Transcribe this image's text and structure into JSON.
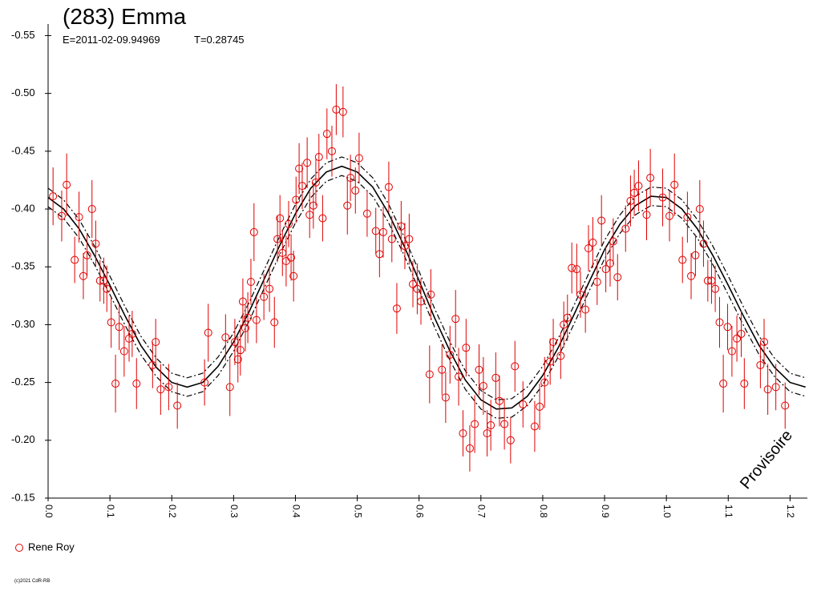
{
  "chart_data": {
    "type": "lightcurve",
    "title": "(283) Emma",
    "epoch": "E=2011-02-09.94969",
    "period": "T=0.28745",
    "annotation": "Provisoire",
    "copyright": "(c)2021 CdR-RB",
    "xlim": [
      0,
      1.228
    ],
    "ylim": [
      -0.56,
      -0.15
    ],
    "y_reversed": true,
    "xticks": [
      {
        "value": 0,
        "label": "0.0"
      },
      0.1,
      0.2,
      0.3,
      0.4,
      0.5,
      0.6,
      0.7,
      0.8,
      0.9,
      {
        "value": 1,
        "label": "1.0"
      },
      1.1,
      1.2
    ],
    "yticks": [
      -0.55,
      {
        "value": -0.5,
        "label": "-0.50"
      },
      -0.45,
      {
        "value": -0.4,
        "label": "-0.40"
      },
      -0.35,
      {
        "value": -0.3,
        "label": "-0.30"
      },
      -0.25,
      {
        "value": -0.2,
        "label": "-0.20"
      },
      -0.15
    ],
    "curves": {
      "x": [
        0,
        0.025,
        0.05,
        0.075,
        0.1,
        0.125,
        0.15,
        0.175,
        0.2,
        0.225,
        0.25,
        0.275,
        0.3,
        0.325,
        0.35,
        0.375,
        0.4,
        0.425,
        0.45,
        0.475,
        0.5,
        0.525,
        0.55,
        0.575,
        0.6,
        0.625,
        0.65,
        0.675,
        0.7,
        0.725,
        0.75,
        0.775,
        0.8,
        0.825,
        0.85,
        0.875,
        0.9,
        0.925,
        0.95,
        0.975,
        1,
        1.025,
        1.05,
        1.075,
        1.1,
        1.125,
        1.15,
        1.175,
        1.2,
        1.225
      ],
      "lines": [
        {
          "style": "solid",
          "color": "#000000",
          "values": [
            -0.41,
            -0.4,
            -0.383,
            -0.36,
            -0.334,
            -0.307,
            -0.282,
            -0.263,
            -0.25,
            -0.246,
            -0.25,
            -0.264,
            -0.285,
            -0.311,
            -0.34,
            -0.369,
            -0.396,
            -0.418,
            -0.432,
            -0.437,
            -0.432,
            -0.419,
            -0.397,
            -0.369,
            -0.338,
            -0.306,
            -0.277,
            -0.252,
            -0.235,
            -0.227,
            -0.228,
            -0.238,
            -0.256,
            -0.28,
            -0.308,
            -0.337,
            -0.365,
            -0.387,
            -0.403,
            -0.411,
            -0.41,
            -0.4,
            -0.383,
            -0.36,
            -0.334,
            -0.307,
            -0.282,
            -0.263,
            -0.25,
            -0.246
          ]
        },
        {
          "style": "dashdot",
          "color": "#000000",
          "values": [
            -0.418,
            -0.408,
            -0.391,
            -0.368,
            -0.342,
            -0.315,
            -0.29,
            -0.271,
            -0.258,
            -0.254,
            -0.258,
            -0.272,
            -0.293,
            -0.319,
            -0.348,
            -0.377,
            -0.404,
            -0.426,
            -0.44,
            -0.445,
            -0.44,
            -0.427,
            -0.405,
            -0.377,
            -0.346,
            -0.314,
            -0.285,
            -0.26,
            -0.243,
            -0.235,
            -0.236,
            -0.246,
            -0.264,
            -0.288,
            -0.316,
            -0.345,
            -0.373,
            -0.395,
            -0.411,
            -0.419,
            -0.418,
            -0.408,
            -0.391,
            -0.368,
            -0.342,
            -0.315,
            -0.29,
            -0.271,
            -0.258,
            -0.254
          ]
        },
        {
          "style": "dashdot",
          "color": "#000000",
          "values": [
            -0.402,
            -0.392,
            -0.375,
            -0.352,
            -0.326,
            -0.299,
            -0.274,
            -0.255,
            -0.242,
            -0.238,
            -0.242,
            -0.256,
            -0.277,
            -0.303,
            -0.332,
            -0.361,
            -0.388,
            -0.41,
            -0.424,
            -0.429,
            -0.424,
            -0.411,
            -0.389,
            -0.361,
            -0.33,
            -0.298,
            -0.269,
            -0.244,
            -0.227,
            -0.219,
            -0.22,
            -0.23,
            -0.248,
            -0.272,
            -0.3,
            -0.329,
            -0.357,
            -0.379,
            -0.395,
            -0.403,
            -0.402,
            -0.392,
            -0.375,
            -0.352,
            -0.326,
            -0.299,
            -0.274,
            -0.255,
            -0.242,
            -0.238
          ]
        }
      ]
    },
    "series": [
      {
        "name": "Rene Roy",
        "color": "#e00000",
        "points": [
          {
            "x": 0.008,
            "y": -0.411,
            "e": 0.025
          },
          {
            "x": 0.022,
            "y": -0.394,
            "e": 0.022
          },
          {
            "x": 0.03,
            "y": -0.421,
            "e": 0.027
          },
          {
            "x": 0.043,
            "y": -0.356,
            "e": 0.02
          },
          {
            "x": 0.05,
            "y": -0.393,
            "e": 0.022
          },
          {
            "x": 0.057,
            "y": -0.342,
            "e": 0.02
          },
          {
            "x": 0.063,
            "y": -0.36,
            "e": 0.018
          },
          {
            "x": 0.071,
            "y": -0.4,
            "e": 0.025
          },
          {
            "x": 0.077,
            "y": -0.37,
            "e": 0.02
          },
          {
            "x": 0.084,
            "y": -0.338,
            "e": 0.018
          },
          {
            "x": 0.09,
            "y": -0.338,
            "e": 0.02
          },
          {
            "x": 0.095,
            "y": -0.331,
            "e": 0.02
          },
          {
            "x": 0.102,
            "y": -0.302,
            "e": 0.022
          },
          {
            "x": 0.109,
            "y": -0.249,
            "e": 0.025
          },
          {
            "x": 0.115,
            "y": -0.298,
            "e": 0.02
          },
          {
            "x": 0.123,
            "y": -0.277,
            "e": 0.022
          },
          {
            "x": 0.131,
            "y": -0.288,
            "e": 0.02
          },
          {
            "x": 0.136,
            "y": -0.292,
            "e": 0.02
          },
          {
            "x": 0.143,
            "y": -0.249,
            "e": 0.022
          },
          {
            "x": 0.169,
            "y": -0.265,
            "e": 0.02
          },
          {
            "x": 0.174,
            "y": -0.285,
            "e": 0.02
          },
          {
            "x": 0.182,
            "y": -0.244,
            "e": 0.022
          },
          {
            "x": 0.195,
            "y": -0.246,
            "e": 0.02
          },
          {
            "x": 0.209,
            "y": -0.23,
            "e": 0.02
          },
          {
            "x": 0.253,
            "y": -0.25,
            "e": 0.02
          },
          {
            "x": 0.259,
            "y": -0.293,
            "e": 0.025
          },
          {
            "x": 0.287,
            "y": -0.289,
            "e": 0.02
          },
          {
            "x": 0.294,
            "y": -0.246,
            "e": 0.025
          },
          {
            "x": 0.302,
            "y": -0.285,
            "e": 0.02
          },
          {
            "x": 0.307,
            "y": -0.27,
            "e": 0.02
          },
          {
            "x": 0.311,
            "y": -0.278,
            "e": 0.022
          },
          {
            "x": 0.315,
            "y": -0.32,
            "e": 0.02
          },
          {
            "x": 0.319,
            "y": -0.297,
            "e": 0.02
          },
          {
            "x": 0.323,
            "y": -0.306,
            "e": 0.022
          },
          {
            "x": 0.328,
            "y": -0.337,
            "e": 0.02
          },
          {
            "x": 0.333,
            "y": -0.38,
            "e": 0.025
          },
          {
            "x": 0.337,
            "y": -0.304,
            "e": 0.02
          },
          {
            "x": 0.349,
            "y": -0.324,
            "e": 0.02
          },
          {
            "x": 0.358,
            "y": -0.331,
            "e": 0.02
          },
          {
            "x": 0.366,
            "y": -0.302,
            "e": 0.022
          },
          {
            "x": 0.371,
            "y": -0.374,
            "e": 0.02
          },
          {
            "x": 0.375,
            "y": -0.392,
            "e": 0.02
          },
          {
            "x": 0.379,
            "y": -0.362,
            "e": 0.02
          },
          {
            "x": 0.385,
            "y": -0.355,
            "e": 0.022
          },
          {
            "x": 0.389,
            "y": -0.387,
            "e": 0.02
          },
          {
            "x": 0.393,
            "y": -0.358,
            "e": 0.02
          },
          {
            "x": 0.397,
            "y": -0.342,
            "e": 0.022
          },
          {
            "x": 0.401,
            "y": -0.408,
            "e": 0.02
          },
          {
            "x": 0.406,
            "y": -0.435,
            "e": 0.022
          },
          {
            "x": 0.411,
            "y": -0.42,
            "e": 0.02
          },
          {
            "x": 0.419,
            "y": -0.44,
            "e": 0.022
          },
          {
            "x": 0.423,
            "y": -0.395,
            "e": 0.02
          },
          {
            "x": 0.429,
            "y": -0.403,
            "e": 0.02
          },
          {
            "x": 0.433,
            "y": -0.423,
            "e": 0.02
          },
          {
            "x": 0.438,
            "y": -0.445,
            "e": 0.02
          },
          {
            "x": 0.444,
            "y": -0.392,
            "e": 0.02
          },
          {
            "x": 0.451,
            "y": -0.465,
            "e": 0.022
          },
          {
            "x": 0.459,
            "y": -0.45,
            "e": 0.022
          },
          {
            "x": 0.466,
            "y": -0.486,
            "e": 0.022
          },
          {
            "x": 0.477,
            "y": -0.484,
            "e": 0.022
          },
          {
            "x": 0.484,
            "y": -0.403,
            "e": 0.025
          },
          {
            "x": 0.489,
            "y": -0.427,
            "e": 0.02
          },
          {
            "x": 0.497,
            "y": -0.416,
            "e": 0.02
          },
          {
            "x": 0.503,
            "y": -0.444,
            "e": 0.022
          },
          {
            "x": 0.516,
            "y": -0.396,
            "e": 0.02
          },
          {
            "x": 0.53,
            "y": -0.381,
            "e": 0.02
          },
          {
            "x": 0.536,
            "y": -0.361,
            "e": 0.02
          },
          {
            "x": 0.542,
            "y": -0.38,
            "e": 0.022
          },
          {
            "x": 0.551,
            "y": -0.419,
            "e": 0.022
          },
          {
            "x": 0.556,
            "y": -0.374,
            "e": 0.02
          },
          {
            "x": 0.564,
            "y": -0.314,
            "e": 0.022
          },
          {
            "x": 0.571,
            "y": -0.385,
            "e": 0.022
          },
          {
            "x": 0.577,
            "y": -0.368,
            "e": 0.02
          },
          {
            "x": 0.584,
            "y": -0.374,
            "e": 0.022
          },
          {
            "x": 0.59,
            "y": -0.335,
            "e": 0.02
          },
          {
            "x": 0.597,
            "y": -0.331,
            "e": 0.022
          },
          {
            "x": 0.603,
            "y": -0.32,
            "e": 0.02
          },
          {
            "x": 0.617,
            "y": -0.257,
            "e": 0.025
          },
          {
            "x": 0.619,
            "y": -0.326,
            "e": 0.022
          },
          {
            "x": 0.637,
            "y": -0.261,
            "e": 0.022
          },
          {
            "x": 0.643,
            "y": -0.237,
            "e": 0.022
          },
          {
            "x": 0.65,
            "y": -0.274,
            "e": 0.025
          },
          {
            "x": 0.659,
            "y": -0.305,
            "e": 0.025
          },
          {
            "x": 0.664,
            "y": -0.255,
            "e": 0.025
          },
          {
            "x": 0.671,
            "y": -0.206,
            "e": 0.02
          },
          {
            "x": 0.676,
            "y": -0.28,
            "e": 0.025
          },
          {
            "x": 0.682,
            "y": -0.193,
            "e": 0.02
          },
          {
            "x": 0.69,
            "y": -0.214,
            "e": 0.025
          },
          {
            "x": 0.697,
            "y": -0.261,
            "e": 0.022
          },
          {
            "x": 0.704,
            "y": -0.247,
            "e": 0.025
          },
          {
            "x": 0.71,
            "y": -0.206,
            "e": 0.02
          },
          {
            "x": 0.716,
            "y": -0.213,
            "e": 0.022
          },
          {
            "x": 0.724,
            "y": -0.254,
            "e": 0.022
          },
          {
            "x": 0.73,
            "y": -0.234,
            "e": 0.022
          },
          {
            "x": 0.738,
            "y": -0.214,
            "e": 0.022
          },
          {
            "x": 0.748,
            "y": -0.2,
            "e": 0.02
          },
          {
            "x": 0.755,
            "y": -0.264,
            "e": 0.022
          },
          {
            "x": 0.768,
            "y": -0.231,
            "e": 0.02
          },
          {
            "x": 0.787,
            "y": -0.212,
            "e": 0.022
          },
          {
            "x": 0.795,
            "y": -0.229,
            "e": 0.02
          },
          {
            "x": 0.803,
            "y": -0.25,
            "e": 0.022
          },
          {
            "x": 0.812,
            "y": -0.268,
            "e": 0.02
          },
          {
            "x": 0.817,
            "y": -0.285,
            "e": 0.02
          },
          {
            "x": 0.829,
            "y": -0.273,
            "e": 0.02
          },
          {
            "x": 0.834,
            "y": -0.3,
            "e": 0.02
          },
          {
            "x": 0.84,
            "y": -0.306,
            "e": 0.02
          },
          {
            "x": 0.847,
            "y": -0.349,
            "e": 0.022
          },
          {
            "x": 0.855,
            "y": -0.348,
            "e": 0.022
          },
          {
            "x": 0.861,
            "y": -0.326,
            "e": 0.02
          },
          {
            "x": 0.869,
            "y": -0.313,
            "e": 0.02
          },
          {
            "x": 0.874,
            "y": -0.366,
            "e": 0.02
          },
          {
            "x": 0.881,
            "y": -0.371,
            "e": 0.022
          },
          {
            "x": 0.888,
            "y": -0.337,
            "e": 0.02
          },
          {
            "x": 0.895,
            "y": -0.39,
            "e": 0.022
          },
          {
            "x": 0.902,
            "y": -0.348,
            "e": 0.02
          },
          {
            "x": 0.909,
            "y": -0.353,
            "e": 0.02
          },
          {
            "x": 0.914,
            "y": -0.372,
            "e": 0.02
          },
          {
            "x": 0.921,
            "y": -0.341,
            "e": 0.02
          },
          {
            "x": 0.934,
            "y": -0.383,
            "e": 0.02
          },
          {
            "x": 0.942,
            "y": -0.407,
            "e": 0.022
          },
          {
            "x": 0.948,
            "y": -0.414,
            "e": 0.02
          },
          {
            "x": 0.955,
            "y": -0.42,
            "e": 0.022
          },
          {
            "x": 0.968,
            "y": -0.395,
            "e": 0.022
          },
          {
            "x": 0.974,
            "y": -0.427,
            "e": 0.025
          },
          {
            "x": 0.994,
            "y": -0.41,
            "e": 0.025
          },
          {
            "x": 1.005,
            "y": -0.394,
            "e": 0.022
          },
          {
            "x": 1.013,
            "y": -0.421,
            "e": 0.027
          },
          {
            "x": 1.026,
            "y": -0.356,
            "e": 0.02
          },
          {
            "x": 1.034,
            "y": -0.393,
            "e": 0.022
          },
          {
            "x": 1.04,
            "y": -0.342,
            "e": 0.02
          },
          {
            "x": 1.047,
            "y": -0.36,
            "e": 0.018
          },
          {
            "x": 1.054,
            "y": -0.4,
            "e": 0.025
          },
          {
            "x": 1.06,
            "y": -0.37,
            "e": 0.02
          },
          {
            "x": 1.067,
            "y": -0.338,
            "e": 0.018
          },
          {
            "x": 1.073,
            "y": -0.338,
            "e": 0.02
          },
          {
            "x": 1.079,
            "y": -0.331,
            "e": 0.02
          },
          {
            "x": 1.086,
            "y": -0.302,
            "e": 0.022
          },
          {
            "x": 1.092,
            "y": -0.249,
            "e": 0.025
          },
          {
            "x": 1.099,
            "y": -0.298,
            "e": 0.02
          },
          {
            "x": 1.106,
            "y": -0.277,
            "e": 0.022
          },
          {
            "x": 1.114,
            "y": -0.288,
            "e": 0.02
          },
          {
            "x": 1.121,
            "y": -0.292,
            "e": 0.02
          },
          {
            "x": 1.126,
            "y": -0.249,
            "e": 0.022
          },
          {
            "x": 1.152,
            "y": -0.265,
            "e": 0.02
          },
          {
            "x": 1.158,
            "y": -0.285,
            "e": 0.02
          },
          {
            "x": 1.164,
            "y": -0.244,
            "e": 0.022
          },
          {
            "x": 1.177,
            "y": -0.246,
            "e": 0.02
          },
          {
            "x": 1.192,
            "y": -0.23,
            "e": 0.02
          }
        ]
      }
    ]
  }
}
